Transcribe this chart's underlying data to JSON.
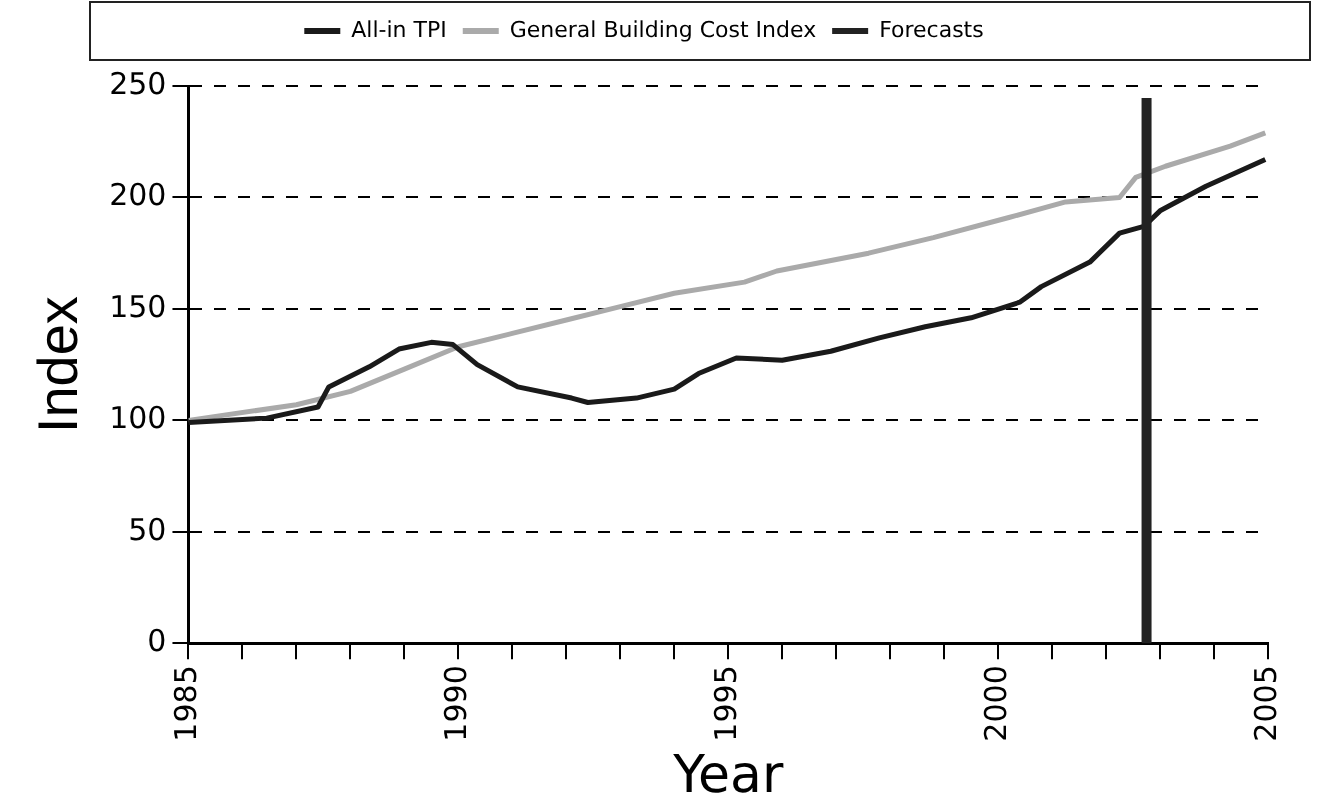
{
  "chart_data": {
    "type": "line",
    "xlabel": "Year",
    "ylabel": "Index",
    "xlim": [
      1985,
      2005
    ],
    "xticks": [
      1985,
      {
        "value": 1986,
        "label": null
      },
      {
        "value": 1987,
        "label": null
      },
      {
        "value": 1988,
        "label": null
      },
      {
        "value": 1989,
        "label": null
      },
      1990,
      {
        "value": 1991,
        "label": null
      },
      {
        "value": 1992,
        "label": null
      },
      {
        "value": 1993,
        "label": null
      },
      {
        "value": 1994,
        "label": null
      },
      1995,
      {
        "value": 1996,
        "label": null
      },
      {
        "value": 1997,
        "label": null
      },
      {
        "value": 1998,
        "label": null
      },
      {
        "value": 1999,
        "label": null
      },
      2000,
      {
        "value": 2001,
        "label": null
      },
      {
        "value": 2002,
        "label": null
      },
      {
        "value": 2003,
        "label": null
      },
      {
        "value": 2004,
        "label": null
      },
      2005
    ],
    "ylim": [
      0,
      250
    ],
    "yticks": [
      0,
      50,
      100,
      150,
      200,
      250
    ],
    "grid": "y",
    "legend": "top",
    "marker": "none",
    "line_style": "solid",
    "series": [
      {
        "name": "All-in TPI",
        "color": "#1a1a1a",
        "x": [
          1985,
          1986.45,
          1987.4,
          1987.6,
          1988.35,
          1988.9,
          1989.5,
          1989.9,
          1990.35,
          1991.1,
          1992.1,
          1992.4,
          1993.3,
          1994,
          1994.45,
          1995.15,
          1996,
          1996.9,
          1997.8,
          1998.65,
          1999.5,
          2000.4,
          2000.8,
          2001.7,
          2002.25,
          2002.7,
          2003,
          2003.85,
          2004.95
        ],
        "values": [
          99,
          101,
          106,
          115,
          124,
          132,
          135,
          134,
          125,
          115,
          110,
          108,
          110,
          114,
          121,
          128,
          127,
          131,
          137,
          142,
          146,
          153,
          160,
          171,
          184,
          187,
          194,
          205,
          217
        ]
      },
      {
        "name": "General Building Cost Index",
        "color": "#aaaaaa",
        "x": [
          1985,
          1987,
          1988,
          1989,
          1990,
          1991,
          1992,
          1993,
          1994,
          1995.3,
          1995.9,
          1997.6,
          1998.8,
          2000.2,
          2001.25,
          2002.25,
          2002.55,
          2003.1,
          2004.3,
          2004.95
        ],
        "values": [
          100,
          107,
          113,
          123,
          133,
          139,
          145,
          151,
          157,
          162,
          167,
          175,
          182,
          191,
          198,
          200,
          209,
          214,
          223,
          229
        ]
      }
    ],
    "ref_lines": [
      {
        "axis": "x",
        "value": 2002.75,
        "label": "Forecasts",
        "color": "#222222"
      }
    ]
  }
}
